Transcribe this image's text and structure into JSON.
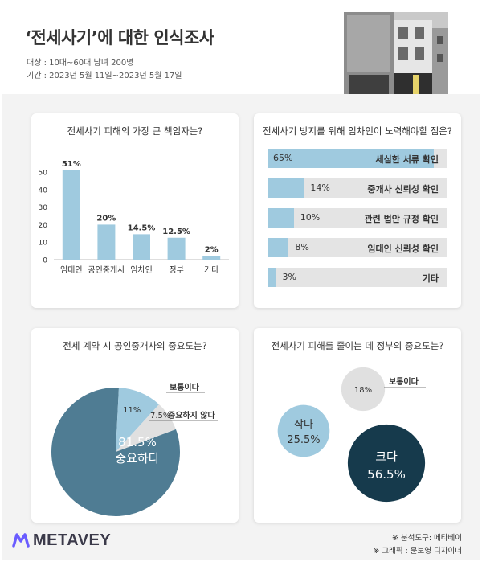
{
  "header": {
    "title": "‘전세사기’에 대한 인식조사",
    "target": "대상 : 10대~60대 남녀 200명",
    "period": "기간 : 2023년 5월 11일~2023년 5월 17일"
  },
  "colors": {
    "light_blue": "#9fcadf",
    "steel_blue": "#4f7c93",
    "dark_navy": "#163a4c",
    "gray": "#e0e0e0"
  },
  "chart_data": [
    {
      "type": "bar",
      "title": "전세사기 피해의 가장 큰 책임자는?",
      "categories": [
        "임대인",
        "공인중개사",
        "임차인",
        "정부",
        "기타"
      ],
      "values": [
        51,
        20,
        14.5,
        12.5,
        2
      ],
      "data_labels": [
        "51%",
        "20%",
        "14.5%",
        "12.5%",
        "2%"
      ],
      "yticks": [
        "0",
        "10",
        "20",
        "30",
        "40",
        "50"
      ],
      "ylim": [
        0,
        55
      ]
    },
    {
      "type": "bar",
      "orientation": "horizontal",
      "title": "전세사기 방지를 위해 임차인이 노력해야할 점은?",
      "categories": [
        "세심한 서류 확인",
        "중개사 신뢰성 확인",
        "관련 법안 규정 확인",
        "임대인 신뢰성 확인",
        "기타"
      ],
      "values": [
        65,
        14,
        10,
        8,
        3
      ],
      "data_labels": [
        "65%",
        "14%",
        "10%",
        "8%",
        "3%"
      ],
      "xlim": [
        0,
        70
      ]
    },
    {
      "type": "pie",
      "title": "전세 계약 시 공인중개사의 중요도는?",
      "labels": [
        "중요하다",
        "보통이다",
        "중요하지 않다"
      ],
      "values": [
        81.5,
        11,
        7.5
      ],
      "data_labels": [
        "81.5%",
        "11%",
        "7.5%"
      ]
    },
    {
      "type": "bubble",
      "title": "전세사기 피해를 줄이는 데 정부의 중요도는?",
      "labels": [
        "크다",
        "작다",
        "보통이다"
      ],
      "values": [
        56.5,
        25.5,
        18
      ],
      "data_labels": [
        "56.5%",
        "25.5%",
        "18%"
      ]
    }
  ],
  "footer": {
    "logo": "METAVEY",
    "tool": "※ 분석도구: 메타베이",
    "graphic": "※ 그래픽 : 문보영 디자이너"
  }
}
